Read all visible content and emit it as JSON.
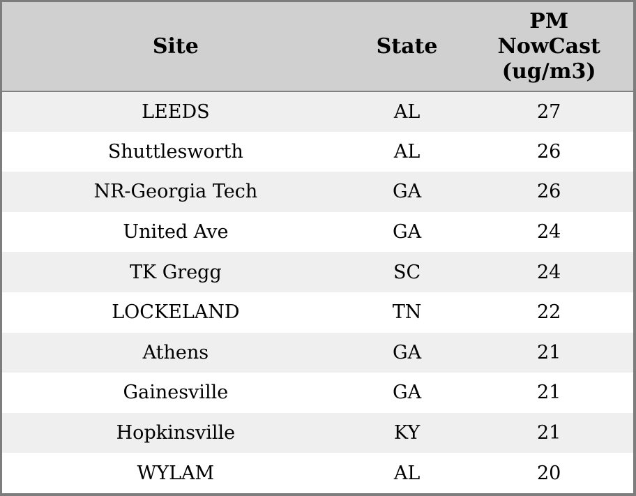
{
  "chart_data": {
    "type": "table",
    "columns": [
      "Site",
      "State",
      "PM NowCast (ug/m3)"
    ],
    "rows": [
      [
        "LEEDS",
        "AL",
        27
      ],
      [
        "Shuttlesworth",
        "AL",
        26
      ],
      [
        "NR-Georgia Tech",
        "GA",
        26
      ],
      [
        "United Ave",
        "GA",
        24
      ],
      [
        "TK Gregg",
        "SC",
        24
      ],
      [
        "LOCKELAND",
        "TN",
        22
      ],
      [
        "Athens",
        "GA",
        21
      ],
      [
        "Gainesville",
        "GA",
        21
      ],
      [
        "Hopkinsville",
        "KY",
        21
      ],
      [
        "WYLAM",
        "AL",
        20
      ]
    ],
    "legend_position": "none",
    "grid": false
  },
  "table": {
    "columns": [
      {
        "label": "Site"
      },
      {
        "label": "State"
      },
      {
        "label": "PM NowCast (ug/m3)"
      }
    ],
    "rows": [
      {
        "site": "LEEDS",
        "state": "AL",
        "pm_nowcast": "27"
      },
      {
        "site": "Shuttlesworth",
        "state": "AL",
        "pm_nowcast": "26"
      },
      {
        "site": "NR-Georgia Tech",
        "state": "GA",
        "pm_nowcast": "26"
      },
      {
        "site": "United Ave",
        "state": "GA",
        "pm_nowcast": "24"
      },
      {
        "site": "TK Gregg",
        "state": "SC",
        "pm_nowcast": "24"
      },
      {
        "site": "LOCKELAND",
        "state": "TN",
        "pm_nowcast": "22"
      },
      {
        "site": "Athens",
        "state": "GA",
        "pm_nowcast": "21"
      },
      {
        "site": "Gainesville",
        "state": "GA",
        "pm_nowcast": "21"
      },
      {
        "site": "Hopkinsville",
        "state": "KY",
        "pm_nowcast": "21"
      },
      {
        "site": "WYLAM",
        "state": "AL",
        "pm_nowcast": "20"
      }
    ]
  },
  "colors": {
    "header_bg": "#d0d0d0",
    "header_divider": "#808080",
    "frame_border": "#7d7d7d",
    "row_alt_bg": "#efefef",
    "row_bg": "#ffffff",
    "text": "#000000"
  }
}
